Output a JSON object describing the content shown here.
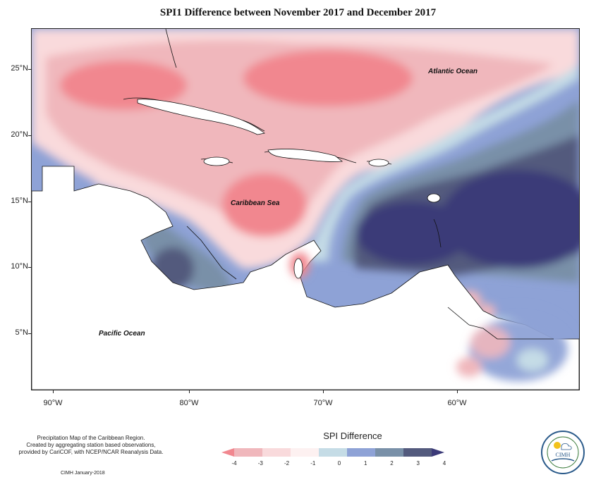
{
  "title": "SPI1 Difference between November 2017 and December 2017",
  "map": {
    "latitude_labels": [
      "25°N",
      "20°N",
      "15°N",
      "10°N",
      "5°N"
    ],
    "longitude_labels": [
      "90°W",
      "80°W",
      "70°W",
      "60°W"
    ],
    "place_labels": {
      "atlantic": "Atlantic Ocean",
      "caribbean": "Caribbean Sea",
      "pacific": "Pacific Ocean"
    }
  },
  "legend": {
    "title": "SPI Difference",
    "ticks": [
      "-4",
      "-3",
      "-2",
      "-1",
      "0",
      "1",
      "2",
      "3",
      "4"
    ],
    "colors": [
      "#f1878f",
      "#f0b7bc",
      "#f9dadc",
      "#fdf1f1",
      "#c5dce6",
      "#8ea2d6",
      "#7990a8",
      "#535a7d",
      "#3b3a78"
    ]
  },
  "footer": {
    "line1": "Precipitation Map of the Caribbean Region.",
    "line2": "Created by aggregating station based observations,",
    "line3": "provided by CariCOF, with NCEP/NCAR Reanalysis Data.",
    "credit": "CIMH January-2018"
  },
  "logo": {
    "text": "CIMH"
  }
}
